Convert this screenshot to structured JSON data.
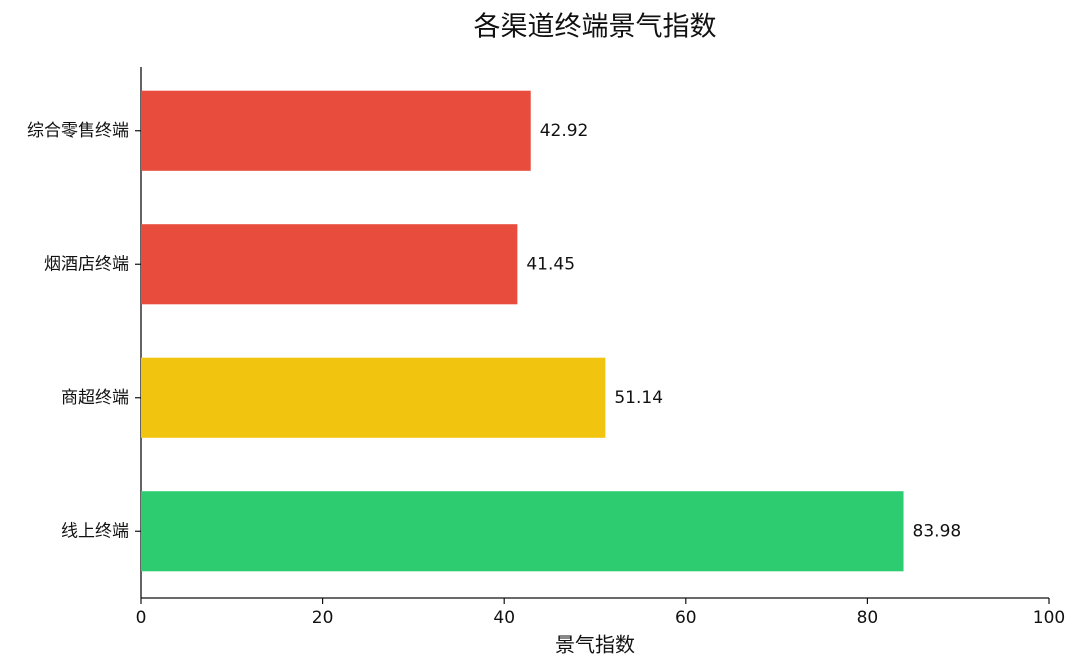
{
  "chart_data": {
    "type": "barh",
    "title": "各渠道终端景气指数",
    "xlabel": "景气指数",
    "categories": [
      "综合零售终端",
      "烟酒店终端",
      "商超终端",
      "线上终端"
    ],
    "values": [
      42.92,
      41.45,
      51.14,
      83.98
    ],
    "colors": [
      "#e74c3c",
      "#e74c3c",
      "#f1c40f",
      "#2ecc71"
    ],
    "xlim": [
      0,
      100
    ],
    "xticks": [
      0,
      20,
      40,
      60,
      80,
      100
    ],
    "grid": false
  }
}
